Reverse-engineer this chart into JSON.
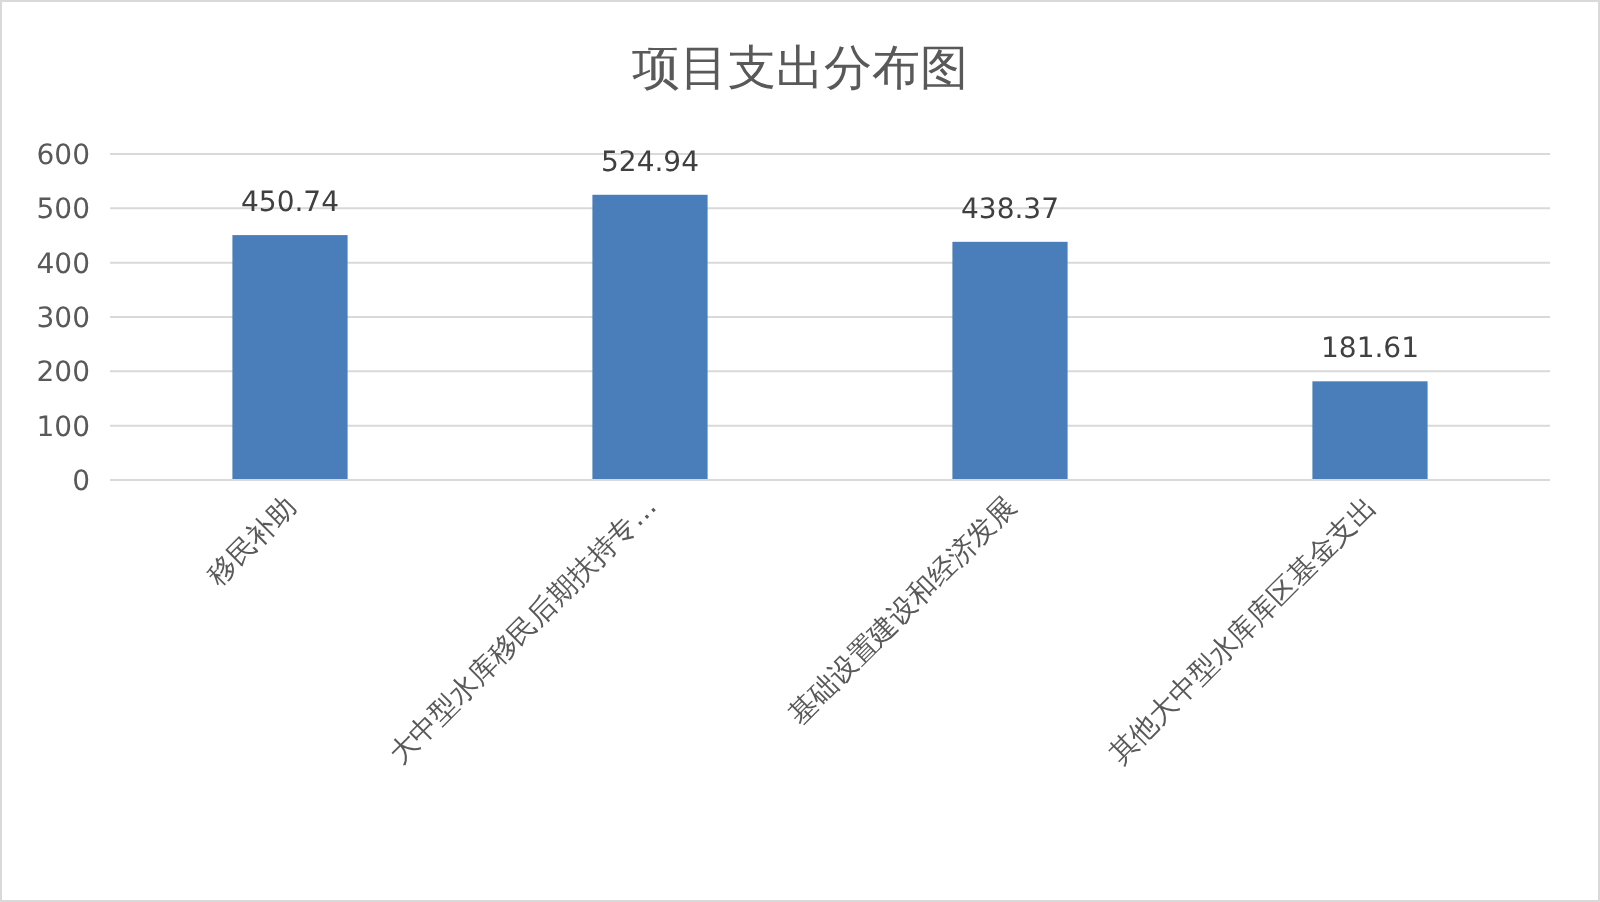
{
  "chart_data": {
    "type": "bar",
    "title": "项目支出分布图",
    "categories": [
      "移民补助",
      "大中型水库移民后期扶持专…",
      "基础设置建设和经济发展",
      "其他大中型水库库区基金支出"
    ],
    "values": [
      450.74,
      524.94,
      438.37,
      181.61
    ],
    "color": "#4a7ebb",
    "ylim": [
      0,
      600
    ],
    "yticks": [
      0,
      100,
      200,
      300,
      400,
      500,
      600
    ],
    "grid": "y",
    "data_labels": true
  }
}
